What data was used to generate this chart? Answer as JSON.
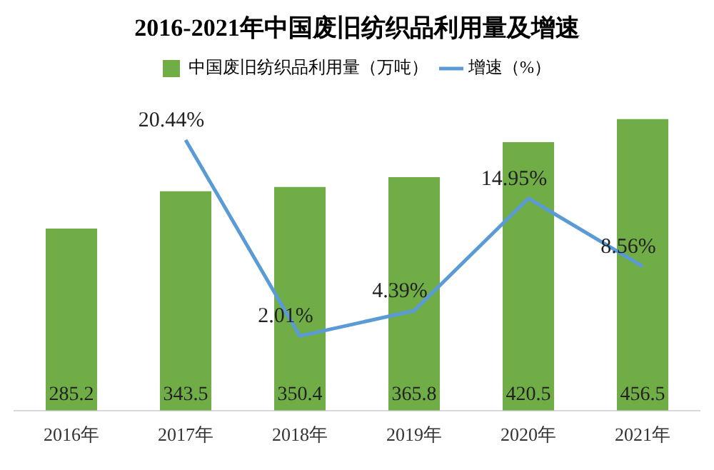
{
  "chart_data": {
    "type": "bar",
    "title": "2016-2021年中国废旧纺织品利用量及增速",
    "categories": [
      "2016年",
      "2017年",
      "2018年",
      "2019年",
      "2020年",
      "2021年"
    ],
    "series": [
      {
        "name": "中国废旧纺织品利用量（万吨）",
        "color": "#70ad47",
        "values": [
          285.2,
          343.5,
          350.4,
          365.8,
          420.5,
          456.5
        ]
      },
      {
        "name": "增速（%）",
        "type": "line",
        "axis": "y2",
        "color": "#5b9bd5",
        "values": [
          null,
          20.44,
          2.01,
          4.39,
          14.95,
          8.56
        ],
        "value_labels": [
          null,
          "20.44%",
          "2.01%",
          "4.39%",
          "14.95%",
          "8.56%"
        ]
      }
    ],
    "data_labels": true,
    "legend": "top",
    "grid": false,
    "tick_labels": "x",
    "marker": "none",
    "line_style": "solid"
  }
}
